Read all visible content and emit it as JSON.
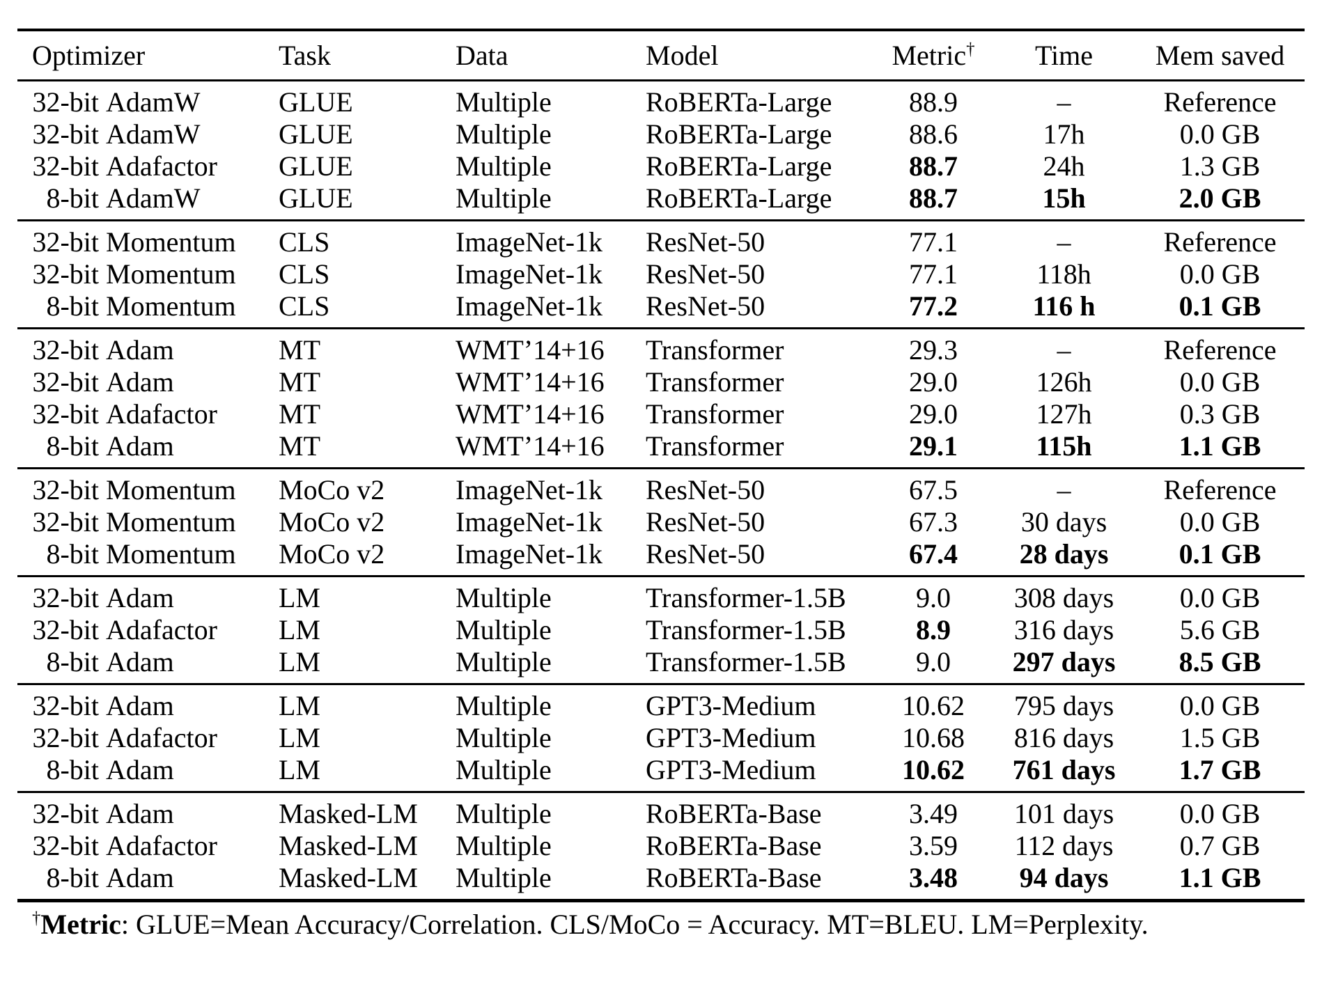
{
  "table": {
    "columns": [
      "Optimizer",
      "Task",
      "Data",
      "Model",
      "Metric",
      "Time",
      "Mem saved"
    ],
    "header_dagger": "†",
    "groups": [
      {
        "rows": [
          {
            "optimizer": "32-bit AdamW",
            "task": "GLUE",
            "data": "Multiple",
            "model": "RoBERTa-Large",
            "metric": "88.9",
            "time": "–",
            "mem": "Reference",
            "bold": []
          },
          {
            "optimizer": "32-bit AdamW",
            "task": "GLUE",
            "data": "Multiple",
            "model": "RoBERTa-Large",
            "metric": "88.6",
            "time": "17h",
            "mem": "0.0 GB",
            "bold": []
          },
          {
            "optimizer": "32-bit Adafactor",
            "task": "GLUE",
            "data": "Multiple",
            "model": "RoBERTa-Large",
            "metric": "88.7",
            "time": "24h",
            "mem": "1.3 GB",
            "bold": [
              "metric"
            ]
          },
          {
            "optimizer": "8-bit AdamW",
            "task": "GLUE",
            "data": "Multiple",
            "model": "RoBERTa-Large",
            "metric": "88.7",
            "time": "15h",
            "mem": "2.0 GB",
            "bold": [
              "metric",
              "time",
              "mem"
            ]
          }
        ]
      },
      {
        "rows": [
          {
            "optimizer": "32-bit Momentum",
            "task": "CLS",
            "data": "ImageNet-1k",
            "model": "ResNet-50",
            "metric": "77.1",
            "time": "–",
            "mem": "Reference",
            "bold": []
          },
          {
            "optimizer": "32-bit Momentum",
            "task": "CLS",
            "data": "ImageNet-1k",
            "model": "ResNet-50",
            "metric": "77.1",
            "time": "118h",
            "mem": "0.0 GB",
            "bold": []
          },
          {
            "optimizer": "8-bit Momentum",
            "task": "CLS",
            "data": "ImageNet-1k",
            "model": "ResNet-50",
            "metric": "77.2",
            "time": "116 h",
            "mem": "0.1 GB",
            "bold": [
              "metric",
              "time",
              "mem"
            ]
          }
        ]
      },
      {
        "rows": [
          {
            "optimizer": "32-bit Adam",
            "task": "MT",
            "data": "WMT’14+16",
            "model": "Transformer",
            "metric": "29.3",
            "time": "–",
            "mem": "Reference",
            "bold": []
          },
          {
            "optimizer": "32-bit Adam",
            "task": "MT",
            "data": "WMT’14+16",
            "model": "Transformer",
            "metric": "29.0",
            "time": "126h",
            "mem": "0.0 GB",
            "bold": []
          },
          {
            "optimizer": "32-bit Adafactor",
            "task": "MT",
            "data": "WMT’14+16",
            "model": "Transformer",
            "metric": "29.0",
            "time": "127h",
            "mem": "0.3 GB",
            "bold": []
          },
          {
            "optimizer": "8-bit Adam",
            "task": "MT",
            "data": "WMT’14+16",
            "model": "Transformer",
            "metric": "29.1",
            "time": "115h",
            "mem": "1.1 GB",
            "bold": [
              "metric",
              "time",
              "mem"
            ]
          }
        ]
      },
      {
        "rows": [
          {
            "optimizer": "32-bit Momentum",
            "task": "MoCo v2",
            "data": "ImageNet-1k",
            "model": "ResNet-50",
            "metric": "67.5",
            "time": "–",
            "mem": "Reference",
            "bold": []
          },
          {
            "optimizer": "32-bit Momentum",
            "task": "MoCo v2",
            "data": "ImageNet-1k",
            "model": "ResNet-50",
            "metric": "67.3",
            "time": "30 days",
            "mem": "0.0 GB",
            "bold": []
          },
          {
            "optimizer": "8-bit Momentum",
            "task": "MoCo v2",
            "data": "ImageNet-1k",
            "model": "ResNet-50",
            "metric": "67.4",
            "time": "28 days",
            "mem": "0.1 GB",
            "bold": [
              "metric",
              "time",
              "mem"
            ]
          }
        ]
      },
      {
        "rows": [
          {
            "optimizer": "32-bit Adam",
            "task": "LM",
            "data": "Multiple",
            "model": "Transformer-1.5B",
            "metric": "9.0",
            "time": "308 days",
            "mem": "0.0 GB",
            "bold": []
          },
          {
            "optimizer": "32-bit Adafactor",
            "task": "LM",
            "data": "Multiple",
            "model": "Transformer-1.5B",
            "metric": "8.9",
            "time": "316 days",
            "mem": "5.6 GB",
            "bold": [
              "metric"
            ]
          },
          {
            "optimizer": "8-bit Adam",
            "task": "LM",
            "data": "Multiple",
            "model": "Transformer-1.5B",
            "metric": "9.0",
            "time": "297 days",
            "mem": "8.5 GB",
            "bold": [
              "time",
              "mem"
            ]
          }
        ]
      },
      {
        "rows": [
          {
            "optimizer": "32-bit Adam",
            "task": "LM",
            "data": "Multiple",
            "model": "GPT3-Medium",
            "metric": "10.62",
            "time": "795 days",
            "mem": "0.0 GB",
            "bold": []
          },
          {
            "optimizer": "32-bit Adafactor",
            "task": "LM",
            "data": "Multiple",
            "model": "GPT3-Medium",
            "metric": "10.68",
            "time": "816 days",
            "mem": "1.5 GB",
            "bold": []
          },
          {
            "optimizer": "8-bit Adam",
            "task": "LM",
            "data": "Multiple",
            "model": "GPT3-Medium",
            "metric": "10.62",
            "time": "761 days",
            "mem": "1.7 GB",
            "bold": [
              "metric",
              "time",
              "mem"
            ]
          }
        ]
      },
      {
        "rows": [
          {
            "optimizer": "32-bit Adam",
            "task": "Masked-LM",
            "data": "Multiple",
            "model": "RoBERTa-Base",
            "metric": "3.49",
            "time": "101 days",
            "mem": "0.0 GB",
            "bold": []
          },
          {
            "optimizer": "32-bit Adafactor",
            "task": "Masked-LM",
            "data": "Multiple",
            "model": "RoBERTa-Base",
            "metric": "3.59",
            "time": "112 days",
            "mem": "0.7 GB",
            "bold": []
          },
          {
            "optimizer": "8-bit Adam",
            "task": "Masked-LM",
            "data": "Multiple",
            "model": "RoBERTa-Base",
            "metric": "3.48",
            "time": "94 days",
            "mem": "1.1 GB",
            "bold": [
              "metric",
              "time",
              "mem"
            ]
          }
        ]
      }
    ]
  },
  "footnote": {
    "dagger": "†",
    "label": "Metric",
    "text": ": GLUE=Mean Accuracy/Correlation. CLS/MoCo = Accuracy. MT=BLEU. LM=Perplexity."
  }
}
